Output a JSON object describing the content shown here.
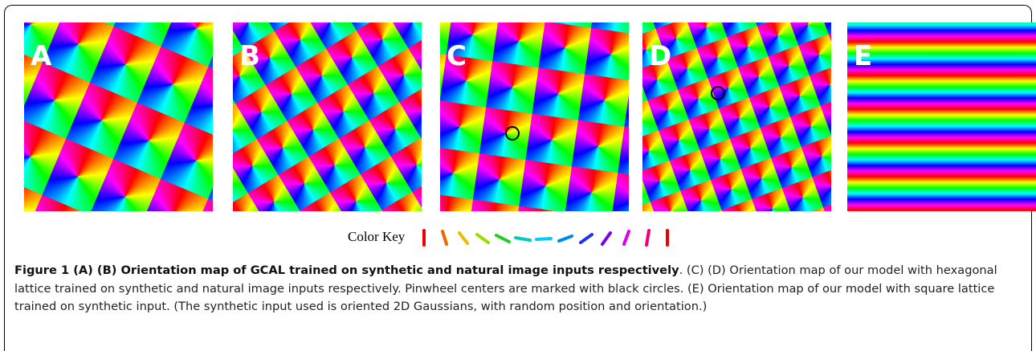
{
  "panels": [
    {
      "label": "A"
    },
    {
      "label": "B"
    },
    {
      "label": "C"
    },
    {
      "label": "D"
    },
    {
      "label": "E"
    }
  ],
  "color_key": {
    "label": "Color Key"
  },
  "caption": {
    "title": "Figure 1 (A) (B) Orientation map of GCAL trained on synthetic and natural image inputs respectively",
    "text": ". (C) (D) Orientation map of our model with hexagonal lattice trained on synthetic and natural image inputs respectively. Pinwheel centers are marked with black circles. (E) Orientation map of our model with square lattice trained on synthetic input. (The synthetic input used is oriented 2D Gaussians, with random position and orientation.)"
  }
}
